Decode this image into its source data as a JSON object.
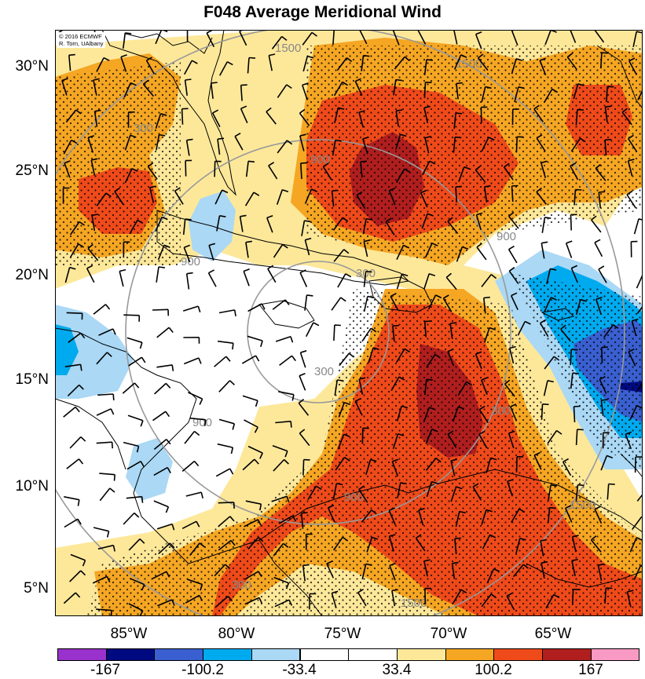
{
  "title": "F048 Average Meridional Wind",
  "credit": {
    "line1": "© 2016 ECMWF",
    "line2": "R. Torn, UAlbany"
  },
  "latitude_labels": [
    "30°N",
    "25°N",
    "20°N",
    "15°N",
    "10°N",
    "5°N"
  ],
  "longitude_labels": [
    "85°W",
    "80°W",
    "75°W",
    "70°W",
    "65°W"
  ],
  "contour_labels": [
    "1500",
    "1500",
    "1500",
    "1500",
    "900",
    "900",
    "900",
    "900",
    "900",
    "300",
    "300",
    "300",
    "300",
    "300"
  ],
  "colorbar": {
    "colors": [
      "#9932cc",
      "#000a80",
      "#3a5fd0",
      "#00aaee",
      "#aad8f5",
      "#ffffff",
      "#ffffff",
      "#fde89a",
      "#f5a623",
      "#ef4a1a",
      "#b01e1e",
      "#f99ac5"
    ],
    "labels": [
      "-167",
      "-100.2",
      "-33.4",
      "33.4",
      "100.2",
      "167"
    ]
  },
  "colors": {
    "positive_weak": "#fde89a",
    "positive_moderate": "#f5a623",
    "positive_strong": "#ef4a1a",
    "positive_extreme": "#b01e1e",
    "negative_weak": "#aad8f5",
    "negative_moderate": "#00aaee",
    "negative_strong": "#3a5fd0"
  }
}
